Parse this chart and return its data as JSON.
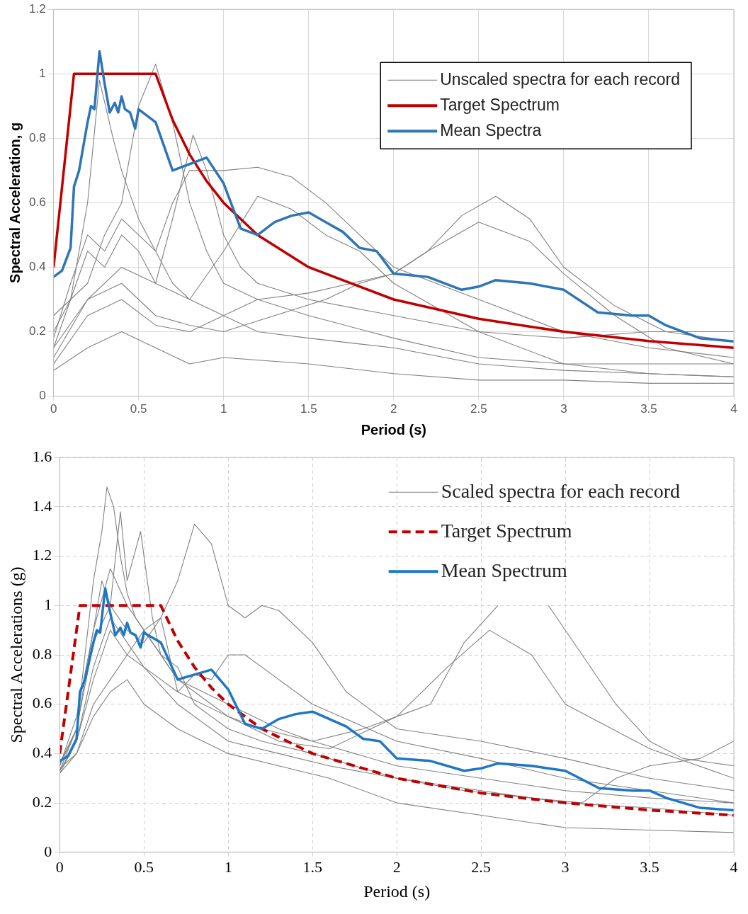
{
  "chart_data": [
    {
      "type": "line",
      "xlabel": "Period (s)",
      "ylabel": "Spectral Acceleration, g",
      "xlim": [
        0,
        4
      ],
      "xticks": [
        0,
        0.5,
        1,
        1.5,
        2,
        2.5,
        3,
        3.5,
        4
      ],
      "ylim": [
        0,
        1.2
      ],
      "yticks": [
        0,
        0.2,
        0.4,
        0.6,
        0.8,
        1,
        1.2
      ],
      "grid": true,
      "legend": "top right",
      "series": [
        {
          "name": "Unscaled spectra for each record",
          "color": "#808080",
          "x": [
            0,
            0.1,
            0.2,
            0.3,
            0.4,
            0.5,
            0.6,
            0.7,
            0.8,
            0.9,
            1.0,
            1.2,
            1.5,
            2,
            2.5,
            3,
            3.5,
            4
          ],
          "values": [
            0.2,
            0.3,
            0.35,
            0.5,
            0.6,
            0.9,
            1.03,
            0.85,
            0.6,
            0.45,
            0.35,
            0.3,
            0.25,
            0.18,
            0.12,
            0.1,
            0.1,
            0.1
          ]
        },
        {
          "color": "#808080",
          "x": [
            0,
            0.1,
            0.2,
            0.27,
            0.35,
            0.4,
            0.5,
            0.6,
            0.7,
            0.8,
            1.0,
            1.2,
            1.5,
            2,
            2.5,
            3,
            3.5,
            4
          ],
          "values": [
            0.15,
            0.3,
            0.6,
            0.98,
            0.8,
            0.7,
            0.55,
            0.45,
            0.35,
            0.3,
            0.25,
            0.2,
            0.18,
            0.15,
            0.1,
            0.08,
            0.07,
            0.06
          ]
        },
        {
          "color": "#808080",
          "x": [
            0,
            0.1,
            0.2,
            0.3,
            0.4,
            0.5,
            0.6,
            0.7,
            0.82,
            0.9,
            1.0,
            1.1,
            1.2,
            1.5,
            2,
            2.5,
            3,
            3.5,
            4
          ],
          "values": [
            0.25,
            0.3,
            0.45,
            0.4,
            0.5,
            0.45,
            0.35,
            0.55,
            0.81,
            0.7,
            0.5,
            0.4,
            0.35,
            0.3,
            0.25,
            0.2,
            0.18,
            0.2,
            0.2
          ]
        },
        {
          "color": "#808080",
          "x": [
            0,
            0.1,
            0.2,
            0.3,
            0.4,
            0.5,
            0.6,
            0.7,
            0.8,
            1.0,
            1.2,
            1.4,
            1.6,
            1.8,
            2,
            2.5,
            3,
            3.5,
            4
          ],
          "values": [
            0.18,
            0.35,
            0.5,
            0.45,
            0.55,
            0.5,
            0.45,
            0.6,
            0.7,
            0.7,
            0.71,
            0.68,
            0.6,
            0.5,
            0.4,
            0.3,
            0.2,
            0.15,
            0.12
          ]
        },
        {
          "color": "#808080",
          "x": [
            0,
            0.2,
            0.4,
            0.6,
            0.8,
            1.0,
            1.3,
            1.6,
            1.8,
            2.0,
            2.2,
            2.4,
            2.6,
            2.8,
            3.0,
            3.3,
            3.6,
            4
          ],
          "values": [
            0.12,
            0.3,
            0.35,
            0.25,
            0.22,
            0.2,
            0.25,
            0.3,
            0.35,
            0.38,
            0.45,
            0.56,
            0.62,
            0.55,
            0.4,
            0.28,
            0.2,
            0.17
          ]
        },
        {
          "color": "#808080",
          "x": [
            0,
            0.2,
            0.4,
            0.6,
            0.8,
            1.0,
            1.2,
            1.5,
            2.0,
            2.2,
            2.5,
            2.8,
            3.0,
            3.3,
            3.6,
            4
          ],
          "values": [
            0.1,
            0.25,
            0.3,
            0.22,
            0.2,
            0.25,
            0.3,
            0.32,
            0.38,
            0.45,
            0.54,
            0.48,
            0.38,
            0.25,
            0.15,
            0.1
          ]
        },
        {
          "color": "#808080",
          "x": [
            0,
            0.2,
            0.4,
            0.6,
            0.8,
            1.0,
            1.2,
            1.4,
            1.6,
            1.8,
            2.0,
            2.5,
            3,
            3.5,
            4
          ],
          "values": [
            0.15,
            0.3,
            0.4,
            0.35,
            0.3,
            0.45,
            0.62,
            0.58,
            0.5,
            0.45,
            0.35,
            0.2,
            0.1,
            0.07,
            0.06
          ]
        },
        {
          "color": "#808080",
          "x": [
            0,
            0.2,
            0.4,
            0.6,
            0.8,
            1.0,
            1.5,
            2,
            2.5,
            3,
            3.5,
            4
          ],
          "values": [
            0.08,
            0.15,
            0.2,
            0.15,
            0.1,
            0.12,
            0.1,
            0.07,
            0.05,
            0.05,
            0.04,
            0.04
          ]
        },
        {
          "name": "Target Spectrum",
          "color": "#c00000",
          "x": [
            0,
            0.12,
            0.6,
            0.7,
            0.8,
            0.9,
            1.0,
            1.2,
            1.5,
            2,
            2.5,
            3,
            3.5,
            4
          ],
          "values": [
            0.4,
            1,
            1,
            0.857,
            0.75,
            0.667,
            0.6,
            0.5,
            0.4,
            0.3,
            0.24,
            0.2,
            0.171,
            0.15
          ]
        },
        {
          "name": "Mean Spectra",
          "color": "#2e75b6",
          "x": [
            0,
            0.05,
            0.1,
            0.12,
            0.15,
            0.2,
            0.22,
            0.24,
            0.27,
            0.3,
            0.33,
            0.36,
            0.38,
            0.4,
            0.42,
            0.45,
            0.48,
            0.5,
            0.6,
            0.7,
            0.8,
            0.9,
            1.0,
            1.1,
            1.2,
            1.3,
            1.4,
            1.5,
            1.6,
            1.7,
            1.8,
            1.9,
            2.0,
            2.2,
            2.4,
            2.5,
            2.6,
            2.8,
            3.0,
            3.2,
            3.4,
            3.5,
            3.6,
            3.8,
            4.0
          ],
          "values": [
            0.37,
            0.39,
            0.46,
            0.65,
            0.7,
            0.85,
            0.9,
            0.89,
            1.07,
            0.97,
            0.88,
            0.91,
            0.88,
            0.93,
            0.89,
            0.88,
            0.83,
            0.89,
            0.85,
            0.7,
            0.72,
            0.74,
            0.66,
            0.52,
            0.5,
            0.54,
            0.56,
            0.57,
            0.54,
            0.51,
            0.46,
            0.45,
            0.38,
            0.37,
            0.33,
            0.34,
            0.36,
            0.35,
            0.33,
            0.26,
            0.25,
            0.25,
            0.22,
            0.18,
            0.17
          ]
        }
      ]
    },
    {
      "type": "line",
      "xlabel": "Period (s)",
      "ylabel": "Spectral Accelerations (g)",
      "xlim": [
        0,
        4
      ],
      "xticks": [
        0,
        0.5,
        1,
        1.5,
        2,
        2.5,
        3,
        3.5,
        4
      ],
      "ylim": [
        0,
        1.6
      ],
      "yticks": [
        0,
        0.2,
        0.4,
        0.6,
        0.8,
        1,
        1.2,
        1.4,
        1.6
      ],
      "grid": true,
      "legend": "top right",
      "series": [
        {
          "name": "Scaled spectra for each record",
          "color": "#808080",
          "x": [
            0,
            0.1,
            0.15,
            0.2,
            0.25,
            0.28,
            0.32,
            0.36,
            0.4,
            0.45,
            0.5,
            0.6,
            0.7,
            0.8,
            0.9,
            1.0,
            1.2,
            1.5,
            2,
            2.5,
            3,
            3.5,
            4
          ],
          "values": [
            0.35,
            0.5,
            0.8,
            1.1,
            1.3,
            1.48,
            1.4,
            1.2,
            1.05,
            0.95,
            0.9,
            0.8,
            0.7,
            0.65,
            0.6,
            0.55,
            0.5,
            0.45,
            0.35,
            0.3,
            0.25,
            0.22,
            0.2
          ]
        },
        {
          "color": "#808080",
          "x": [
            0,
            0.1,
            0.2,
            0.3,
            0.4,
            0.5,
            0.6,
            0.7,
            0.8,
            0.9,
            1.0,
            1.1,
            1.2,
            1.3,
            1.5,
            1.7,
            2,
            2.5,
            3,
            3.5,
            4
          ],
          "values": [
            0.33,
            0.45,
            0.7,
            0.9,
            0.8,
            0.9,
            0.95,
            1.1,
            1.33,
            1.25,
            1.0,
            0.95,
            1.0,
            0.98,
            0.85,
            0.65,
            0.5,
            0.45,
            0.38,
            0.3,
            0.25
          ]
        },
        {
          "color": "#808080",
          "x": [
            0,
            0.1,
            0.2,
            0.25,
            0.3,
            0.36,
            0.4,
            0.48,
            0.55,
            0.6,
            0.7,
            0.8,
            0.9,
            1.0,
            1.2,
            1.5,
            2,
            2.5,
            3,
            3.5,
            4
          ],
          "values": [
            0.35,
            0.55,
            0.9,
            1.1,
            1.0,
            1.38,
            1.1,
            1.3,
            0.95,
            0.8,
            0.75,
            0.6,
            0.55,
            0.5,
            0.45,
            0.4,
            0.3,
            0.25,
            0.2,
            0.18,
            0.15
          ]
        },
        {
          "color": "#808080",
          "x": [
            0,
            0.1,
            0.2,
            0.3,
            0.4,
            0.5,
            0.7,
            1.0,
            1.3,
            1.5,
            1.8,
            2,
            2.2,
            2.4,
            2.6,
            2.7,
            2.8,
            2.9,
            3.1,
            3.3,
            3.5,
            3.7,
            4
          ],
          "values": [
            0.33,
            0.5,
            0.9,
            1.15,
            1.0,
            0.9,
            0.7,
            0.6,
            0.5,
            0.45,
            0.5,
            0.55,
            0.6,
            0.85,
            1.0,
            null,
            null,
            1.0,
            0.8,
            0.6,
            0.45,
            0.38,
            0.35
          ]
        },
        {
          "color": "#808080",
          "x": [
            0,
            0.1,
            0.2,
            0.3,
            0.4,
            0.5,
            0.7,
            1.0,
            1.3,
            1.6,
            2.0,
            2.3,
            2.55,
            2.8,
            3.0,
            3.5,
            4
          ],
          "values": [
            0.32,
            0.45,
            0.75,
            0.95,
            0.85,
            0.75,
            0.65,
            0.55,
            0.45,
            0.42,
            0.55,
            0.75,
            0.9,
            0.8,
            0.6,
            0.42,
            0.3
          ]
        },
        {
          "color": "#808080",
          "x": [
            0,
            0.1,
            0.2,
            0.3,
            0.4,
            0.5,
            0.7,
            1.0,
            1.3,
            1.6,
            2.0,
            2.4,
            2.8,
            3.1,
            3.3,
            3.5,
            3.8,
            4
          ],
          "values": [
            0.34,
            0.4,
            0.6,
            0.7,
            0.8,
            0.75,
            0.6,
            0.45,
            0.4,
            0.35,
            0.3,
            0.25,
            0.22,
            0.2,
            0.3,
            0.35,
            0.38,
            0.45
          ]
        },
        {
          "color": "#808080",
          "x": [
            0,
            0.1,
            0.2,
            0.3,
            0.4,
            0.5,
            0.7,
            1.0,
            1.3,
            1.6,
            2.0,
            2.5,
            3.0,
            3.5,
            4
          ],
          "values": [
            0.32,
            0.4,
            0.55,
            0.65,
            0.7,
            0.6,
            0.5,
            0.4,
            0.35,
            0.3,
            0.2,
            0.15,
            0.1,
            0.09,
            0.08
          ]
        },
        {
          "color": "#808080",
          "x": [
            0,
            0.1,
            0.2,
            0.3,
            0.4,
            0.5,
            0.6,
            0.7,
            0.8,
            0.9,
            1.0,
            1.1,
            1.2,
            1.5,
            2,
            2.5,
            3,
            3.5,
            4
          ],
          "values": [
            0.36,
            0.5,
            0.85,
            1.0,
            0.9,
            0.85,
            0.95,
            0.65,
            0.72,
            0.7,
            0.8,
            0.8,
            0.75,
            0.6,
            0.45,
            0.38,
            0.3,
            0.25,
            0.2
          ]
        },
        {
          "name": "Target Spectrum",
          "color": "#c00000",
          "line_style": "dashed",
          "x": [
            0,
            0.12,
            0.6,
            0.7,
            0.8,
            0.9,
            1.0,
            1.2,
            1.5,
            2,
            2.5,
            3,
            3.5,
            4
          ],
          "values": [
            0.4,
            1,
            1,
            0.857,
            0.75,
            0.667,
            0.6,
            0.5,
            0.4,
            0.3,
            0.24,
            0.2,
            0.171,
            0.15
          ]
        },
        {
          "name": "Mean Spectrum",
          "color": "#1f77c4",
          "x": [
            0,
            0.05,
            0.1,
            0.12,
            0.15,
            0.2,
            0.22,
            0.24,
            0.27,
            0.3,
            0.33,
            0.36,
            0.38,
            0.4,
            0.42,
            0.45,
            0.48,
            0.5,
            0.6,
            0.7,
            0.8,
            0.9,
            1.0,
            1.1,
            1.2,
            1.3,
            1.4,
            1.5,
            1.6,
            1.7,
            1.8,
            1.9,
            2.0,
            2.2,
            2.4,
            2.5,
            2.6,
            2.8,
            3.0,
            3.2,
            3.4,
            3.5,
            3.6,
            3.8,
            4.0
          ],
          "values": [
            0.37,
            0.39,
            0.46,
            0.65,
            0.7,
            0.85,
            0.9,
            0.89,
            1.07,
            0.97,
            0.88,
            0.91,
            0.88,
            0.93,
            0.89,
            0.88,
            0.83,
            0.89,
            0.85,
            0.7,
            0.72,
            0.74,
            0.66,
            0.52,
            0.5,
            0.54,
            0.56,
            0.57,
            0.54,
            0.51,
            0.46,
            0.45,
            0.38,
            0.37,
            0.33,
            0.34,
            0.36,
            0.35,
            0.33,
            0.26,
            0.25,
            0.25,
            0.22,
            0.18,
            0.17
          ]
        }
      ]
    }
  ]
}
